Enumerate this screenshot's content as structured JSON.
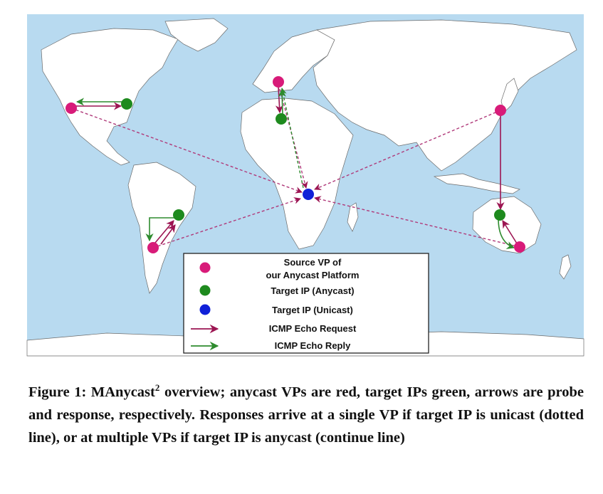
{
  "colors": {
    "ocean": "#b8daf0",
    "land": "#ffffff",
    "source_vp": "#d81b79",
    "target_anycast": "#1e8a1e",
    "target_unicast": "#1020d8",
    "request_arrow": "#9c1552",
    "reply_arrow": "#2e8b2e",
    "dotted_request": "#b03a7a",
    "dotted_reply": "#2e8b2e"
  },
  "legend": {
    "items": [
      {
        "icon": "source-vp-dot",
        "lines": [
          "Source VP of",
          "our Anycast Platform"
        ]
      },
      {
        "icon": "anycast-target-dot",
        "lines": [
          "Target IP (Anycast)"
        ]
      },
      {
        "icon": "unicast-target-dot",
        "lines": [
          "Target IP (Unicast)"
        ]
      },
      {
        "icon": "request-arrow-icon",
        "lines": [
          "ICMP Echo Request"
        ]
      },
      {
        "icon": "reply-arrow-icon",
        "lines": [
          "ICMP Echo Reply"
        ]
      }
    ]
  },
  "caption": {
    "prefix": "Figure 1: MAnycast",
    "superscript": "2",
    "body": " overview; anycast VPs are red, target IPs green, arrows are probe and response, respectively. Responses arrive at a single VP if target IP is unicast (dotted line), or at multiple VPs if target IP is anycast (continue line)"
  }
}
